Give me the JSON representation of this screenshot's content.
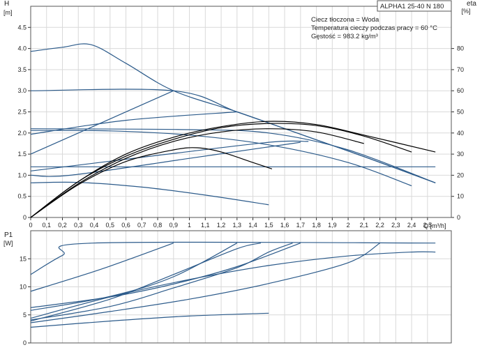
{
  "title": "ALPHA1 25-40 N 180",
  "info_lines": [
    "Ciecz tłoczona = Woda",
    "Temperatura cieczy podczas pracy = 60 °C",
    "Gęstość = 983.2 kg/m³"
  ],
  "colors": {
    "pump_curve": "#2b5a8a",
    "efficiency_curve": "#000000",
    "grid": "#d9d9d9"
  },
  "chart_data": [
    {
      "type": "line",
      "panel": "head-efficiency",
      "ylabel": "H",
      "yunit": "[m]",
      "y2label": "eta",
      "y2unit": "[%]",
      "xlabel": "Q [m³/h]",
      "xlim": [
        0,
        2.65
      ],
      "ylim": [
        0,
        5
      ],
      "y2lim": [
        0,
        100
      ],
      "xticks": [
        "0",
        "0,1",
        "0,2",
        "0,3",
        "0,4",
        "0,5",
        "0,6",
        "0,7",
        "0,8",
        "0,9",
        "1",
        "1,1",
        "1,2",
        "1,3",
        "1,4",
        "1,5",
        "1,6",
        "1,7",
        "1,8",
        "1,9",
        "2",
        "2,1",
        "2,2",
        "2,3",
        "2,4",
        "2,5"
      ],
      "yticks": [
        "0",
        "0.5",
        "1.0",
        "1.5",
        "2.0",
        "2.5",
        "3.0",
        "3.5",
        "4.0",
        "4.5"
      ],
      "y2ticks": [
        "0",
        "10",
        "20",
        "30",
        "40",
        "50",
        "60",
        "70",
        "80"
      ],
      "series": [
        {
          "kind": "head",
          "points": [
            [
              0,
              3.93
            ],
            [
              0.2,
              4.03
            ],
            [
              0.38,
              4.09
            ],
            [
              0.6,
              3.65
            ],
            [
              0.9,
              3.0
            ],
            [
              1.3,
              2.5
            ],
            [
              1.7,
              1.97
            ],
            [
              2.1,
              1.44
            ],
            [
              2.55,
              0.82
            ]
          ]
        },
        {
          "kind": "head",
          "points": [
            [
              0,
              3.0
            ],
            [
              0.9,
              3.0
            ],
            [
              1.3,
              2.5
            ],
            [
              1.7,
              1.97
            ],
            [
              2.1,
              1.44
            ],
            [
              2.55,
              0.82
            ]
          ]
        },
        {
          "kind": "head",
          "points": [
            [
              0,
              1.5
            ],
            [
              0.45,
              2.25
            ],
            [
              0.9,
              3.0
            ]
          ]
        },
        {
          "kind": "head",
          "points": [
            [
              0,
              1.97
            ],
            [
              0.6,
              2.3
            ],
            [
              1.3,
              2.5
            ]
          ]
        },
        {
          "kind": "head",
          "points": [
            [
              0,
              2.1
            ],
            [
              1.0,
              2.08
            ],
            [
              1.5,
              2.0
            ],
            [
              2.0,
              1.6
            ],
            [
              2.55,
              0.82
            ]
          ]
        },
        {
          "kind": "head",
          "points": [
            [
              0,
              2.06
            ],
            [
              0.5,
              2.05
            ],
            [
              1.0,
              1.95
            ],
            [
              1.5,
              1.72
            ],
            [
              2.0,
              1.3
            ],
            [
              2.4,
              0.75
            ]
          ]
        },
        {
          "kind": "head",
          "points": [
            [
              0,
              1.1
            ],
            [
              0.8,
              1.47
            ],
            [
              1.5,
              1.78
            ],
            [
              1.75,
              1.8
            ]
          ]
        },
        {
          "kind": "head",
          "points": [
            [
              0,
              1.0
            ],
            [
              0.25,
              1.0
            ],
            [
              1.0,
              1.4
            ],
            [
              1.7,
              1.78
            ]
          ]
        },
        {
          "kind": "head",
          "points": [
            [
              0,
              1.2
            ],
            [
              2.55,
              1.2
            ]
          ]
        },
        {
          "kind": "head",
          "points": [
            [
              0,
              0.82
            ],
            [
              0.3,
              0.83
            ],
            [
              0.7,
              0.72
            ],
            [
              1.1,
              0.53
            ],
            [
              1.5,
              0.3
            ]
          ]
        },
        {
          "kind": "eta",
          "points": [
            [
              0,
              0
            ],
            [
              0.3,
              17
            ],
            [
              0.6,
              30
            ],
            [
              0.9,
              38
            ],
            [
              1.2,
              43
            ],
            [
              1.5,
              45.5
            ],
            [
              1.8,
              44
            ],
            [
              2.1,
              39
            ],
            [
              2.55,
              31
            ]
          ]
        },
        {
          "kind": "eta",
          "points": [
            [
              0,
              0
            ],
            [
              0.3,
              17
            ],
            [
              0.6,
              29
            ],
            [
              0.9,
              37
            ],
            [
              1.2,
              42.5
            ],
            [
              1.5,
              44.5
            ],
            [
              1.8,
              43.5
            ],
            [
              2.1,
              38.5
            ],
            [
              2.4,
              31
            ]
          ]
        },
        {
          "kind": "eta",
          "points": [
            [
              0,
              0
            ],
            [
              0.3,
              16
            ],
            [
              0.6,
              28
            ],
            [
              0.9,
              36
            ],
            [
              1.2,
              40.5
            ],
            [
              1.5,
              42
            ],
            [
              1.8,
              40.5
            ],
            [
              2.1,
              35
            ]
          ]
        },
        {
          "kind": "eta",
          "points": [
            [
              0,
              0
            ],
            [
              0.3,
              15.5
            ],
            [
              0.6,
              26.5
            ],
            [
              0.9,
              32
            ],
            [
              1.05,
              33
            ],
            [
              1.2,
              31
            ],
            [
              1.4,
              26
            ],
            [
              1.52,
              23
            ]
          ]
        }
      ]
    },
    {
      "type": "line",
      "panel": "power",
      "ylabel": "P1",
      "yunit": "[W]",
      "xlim": [
        0,
        2.65
      ],
      "ylim": [
        0,
        20
      ],
      "yticks": [
        "0",
        "5",
        "10",
        "15"
      ],
      "series": [
        {
          "points": [
            [
              0,
              12.2
            ],
            [
              0.2,
              15.6
            ],
            [
              0.4,
              17.8
            ],
            [
              2.55,
              17.8
            ]
          ]
        },
        {
          "points": [
            [
              0,
              9.2
            ],
            [
              0.45,
              13.2
            ],
            [
              0.9,
              17.8
            ]
          ]
        },
        {
          "points": [
            [
              0,
              6.3
            ],
            [
              0.5,
              8.2
            ],
            [
              0.9,
              10.5
            ],
            [
              1.3,
              13.6
            ],
            [
              1.7,
              17.8
            ]
          ]
        },
        {
          "points": [
            [
              0,
              5.8
            ],
            [
              0.5,
              8.3
            ],
            [
              0.9,
              11.8
            ],
            [
              1.3,
              17.8
            ]
          ]
        },
        {
          "points": [
            [
              0,
              4.1
            ],
            [
              0.5,
              6.5
            ],
            [
              0.9,
              9.8
            ],
            [
              1.3,
              13.4
            ],
            [
              1.5,
              16.2
            ],
            [
              1.65,
              17.8
            ]
          ]
        },
        {
          "points": [
            [
              0,
              3.9
            ],
            [
              0.5,
              7.8
            ],
            [
              0.9,
              12.2
            ],
            [
              1.3,
              16.8
            ],
            [
              1.45,
              17.8
            ]
          ]
        },
        {
          "points": [
            [
              0,
              3.6
            ],
            [
              0.5,
              5.6
            ],
            [
              1.0,
              7.8
            ],
            [
              1.5,
              10.6
            ],
            [
              2.0,
              14.3
            ],
            [
              2.2,
              17.8
            ]
          ]
        },
        {
          "points": [
            [
              0,
              4.4
            ],
            [
              0.5,
              8.2
            ],
            [
              1.0,
              11.3
            ],
            [
              1.5,
              13.8
            ],
            [
              2.0,
              15.5
            ],
            [
              2.4,
              16.2
            ],
            [
              2.55,
              16.2
            ]
          ]
        },
        {
          "points": [
            [
              0,
              2.8
            ],
            [
              0.5,
              3.9
            ],
            [
              1.0,
              4.8
            ],
            [
              1.5,
              5.3
            ]
          ]
        }
      ]
    }
  ]
}
